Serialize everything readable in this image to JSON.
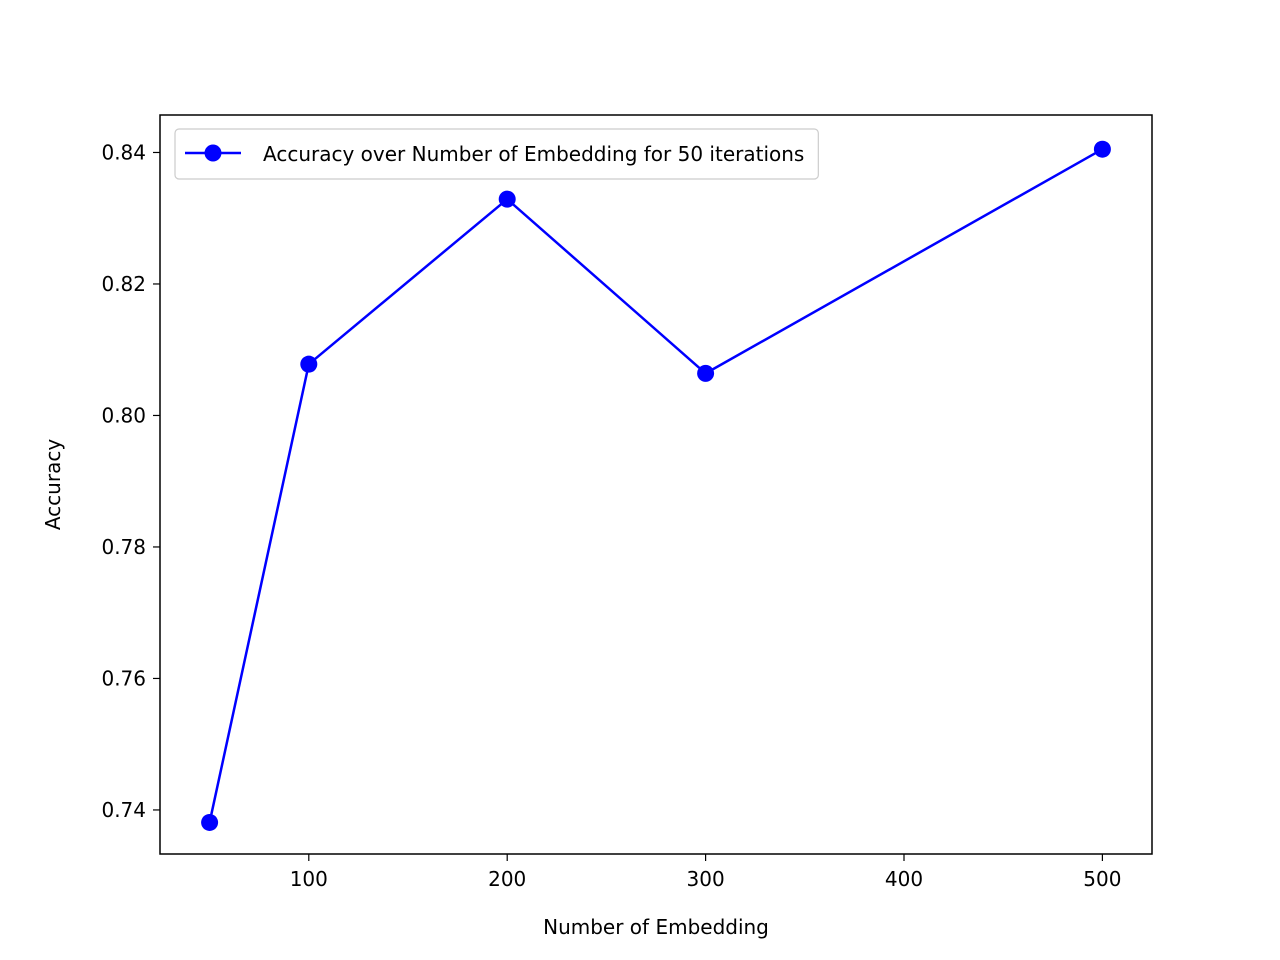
{
  "chart_data": {
    "type": "line",
    "title": "",
    "xlabel": "Number of Embedding",
    "ylabel": "Accuracy",
    "xlim": [
      25,
      525
    ],
    "ylim": [
      0.7333,
      0.8457
    ],
    "x_ticks": [
      100,
      200,
      300,
      400,
      500
    ],
    "x_tick_labels": [
      "100",
      "200",
      "300",
      "400",
      "500"
    ],
    "y_ticks": [
      0.74,
      0.76,
      0.78,
      0.8,
      0.82,
      0.84
    ],
    "y_tick_labels": [
      "0.74",
      "0.76",
      "0.78",
      "0.80",
      "0.82",
      "0.84"
    ],
    "grid": false,
    "legend_position": "upper-left",
    "series": [
      {
        "name": "Accuracy over Number of Embedding for 50 iterations",
        "color": "#0000ff",
        "marker": "circle",
        "x": [
          50,
          100,
          200,
          300,
          500
        ],
        "y": [
          0.7381,
          0.8078,
          0.8329,
          0.8064,
          0.8405
        ]
      }
    ]
  }
}
